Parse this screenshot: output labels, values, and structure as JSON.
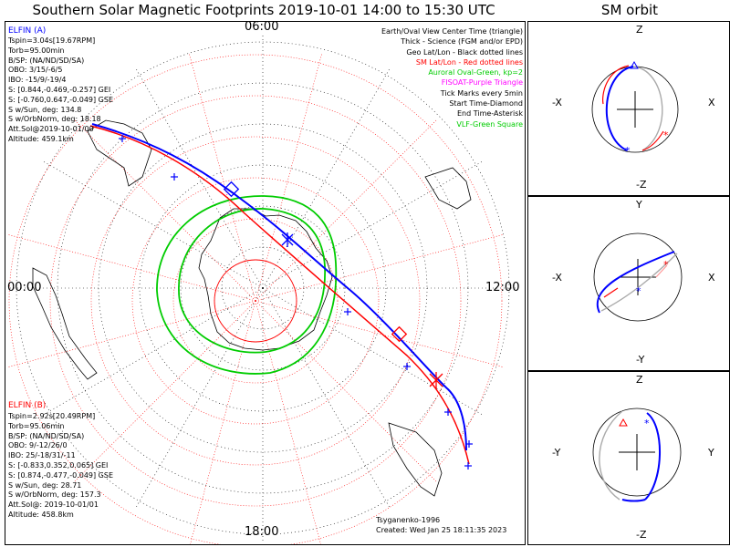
{
  "title": "Southern Solar Magnetic Footprints 2019-10-01 14:00 to 15:30 UTC",
  "orbit_title": "SM orbit",
  "time_labels": {
    "top": "06:00",
    "left": "00:00",
    "right": "12:00",
    "bottom": "18:00"
  },
  "elfin_a": {
    "name": "ELFIN (A)",
    "color": "#0000ff",
    "lines": [
      "Tspin=3.04s[19.67RPM]",
      "Torb=95.00min",
      "B/SP: (NA/ND/SD/SA)",
      "OBO: 3/15/-6/5",
      "IBO: -15/9/-19/4",
      "S: [0.844,-0.469,-0.257] GEI",
      "S: [-0.760,0.647,-0.049] GSE",
      "S w/Sun, deg: 134.8",
      "S w/OrbNorm, deg: 18.18",
      "Att.Sol@2019-10-01/00",
      "Altitude: 459.1km"
    ]
  },
  "elfin_b": {
    "name": "ELFIN (B)",
    "color": "#ff0000",
    "lines": [
      "Tspin=2.92s[20.49RPM]",
      "Torb=95.06min",
      "B/SP: (NA/ND/SD/SA)",
      "OBO: 9/-12/26/0",
      "IBO: 25/-18/31/-11",
      "S: [-0.833,0.352,0.065] GEI",
      "S: [0.874,-0.477,-0.049] GSE",
      "S w/Sun, deg: 28.71",
      "S w/OrbNorm, deg: 157.3",
      "Att.Sol@: 2019-10-01/01",
      "Altitude: 458.8km"
    ]
  },
  "legend": [
    {
      "text": "Earth/Oval View Center Time (triangle)",
      "color": "#000000"
    },
    {
      "text": "Thick - Science (FGM and/or EPD)",
      "color": "#000000"
    },
    {
      "text": "Geo Lat/Lon - Black dotted lines",
      "color": "#000000"
    },
    {
      "text": "SM Lat/Lon - Red dotted lines",
      "color": "#ff0000"
    },
    {
      "text": "Auroral Oval-Green, kp=2",
      "color": "#00cc00"
    },
    {
      "text": "FISOAT-Purple Triangle",
      "color": "#ff00ff"
    },
    {
      "text": "Tick Marks every 5min",
      "color": "#000000"
    },
    {
      "text": "Start Time-Diamond",
      "color": "#000000"
    },
    {
      "text": "End Time-Asterisk",
      "color": "#000000"
    },
    {
      "text": "VLF-Green Square",
      "color": "#00cc00"
    }
  ],
  "credits": {
    "author": "Tsyganenko-1996",
    "created": "Created: Wed Jan 25 18:11:35 2023"
  },
  "orbit_panels": [
    {
      "top": "Z",
      "bottom": "-Z",
      "left": "-X",
      "right": "X"
    },
    {
      "top": "Y",
      "bottom": "-Y",
      "left": "-X",
      "right": "X"
    },
    {
      "top": "Z",
      "bottom": "-Z",
      "left": "-Y",
      "right": "Y"
    }
  ],
  "chart_data": [
    {
      "type": "scatter",
      "title": "Southern Solar Magnetic Footprints 2019-10-01 14:00 to 15:30 UTC",
      "projection": "polar, south pole centered, MLT around edge",
      "mlt_ticks": [
        "06:00",
        "00:00",
        "12:00",
        "18:00"
      ],
      "series": [
        {
          "name": "ELFIN (A)",
          "color": "#0000ff"
        },
        {
          "name": "ELFIN (B)",
          "color": "#ff0000"
        }
      ]
    },
    {
      "type": "line",
      "title": "SM orbit",
      "panels": [
        "X-Z",
        "X-Y",
        "Y-Z"
      ]
    }
  ]
}
